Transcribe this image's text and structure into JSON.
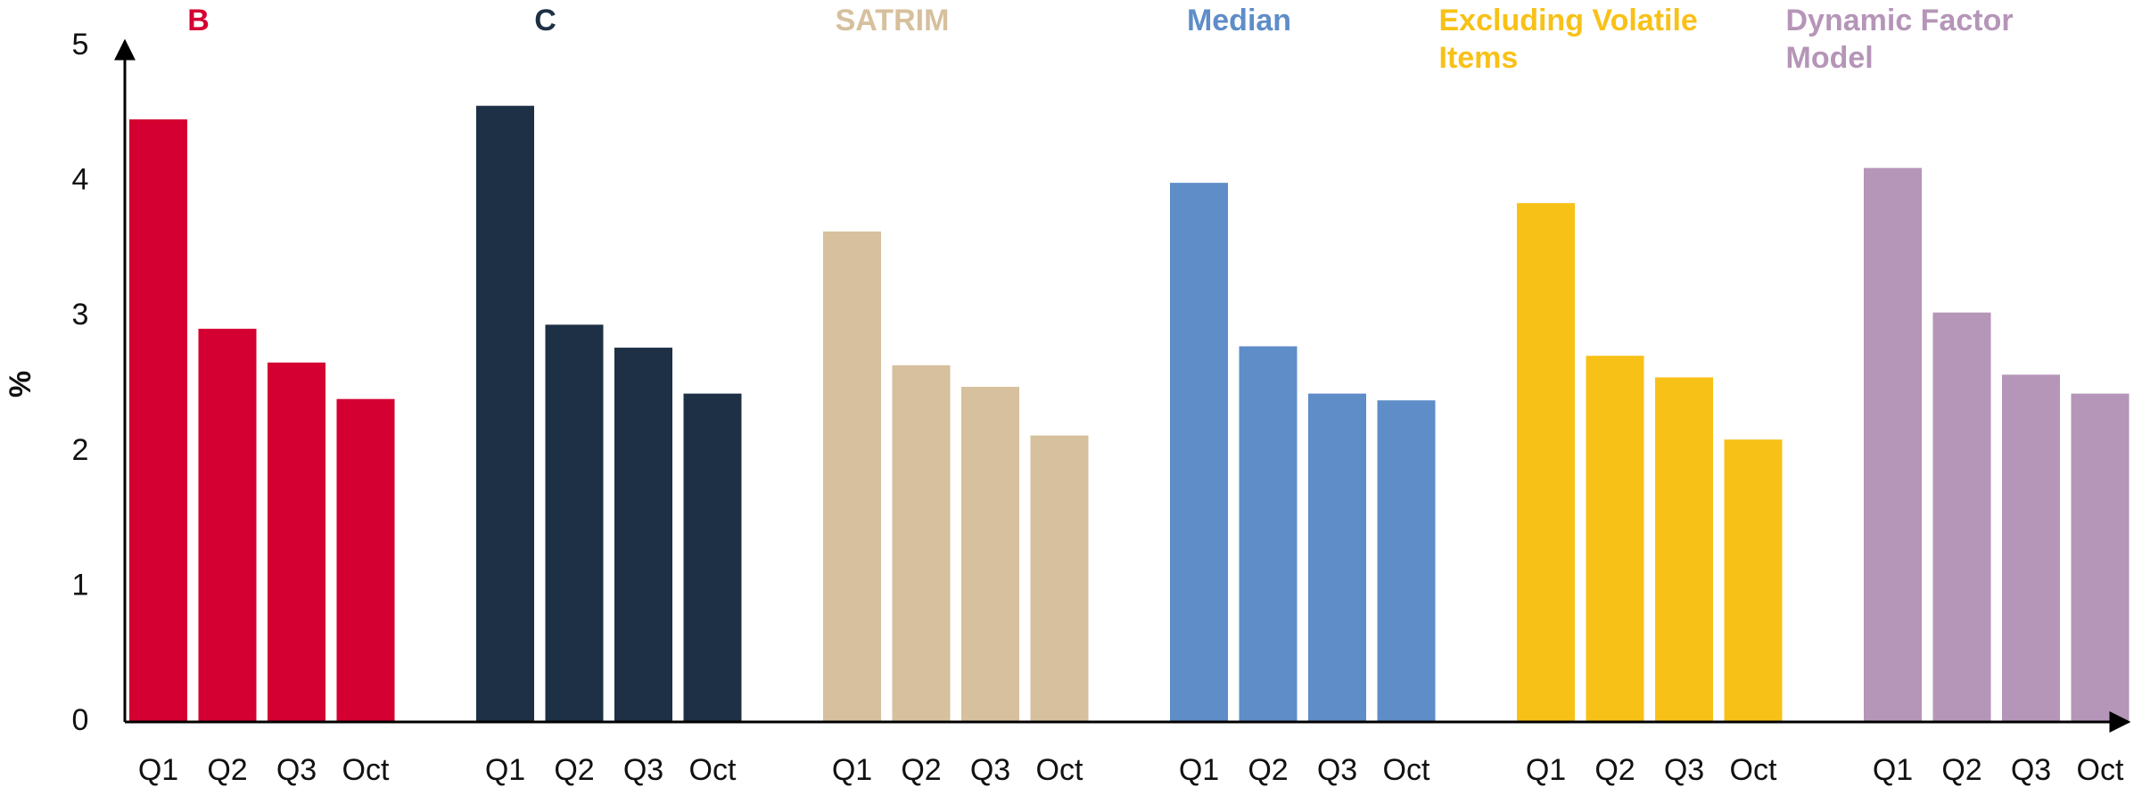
{
  "chart_data": {
    "type": "bar",
    "y_label": "%",
    "categories": [
      "Q1",
      "Q2",
      "Q3",
      "Oct"
    ],
    "series": [
      {
        "name": "B",
        "color": "#d50032",
        "values": [
          4.46,
          2.91,
          2.66,
          2.39
        ]
      },
      {
        "name": "C",
        "color": "#1d3045",
        "values": [
          4.56,
          2.94,
          2.77,
          2.43
        ]
      },
      {
        "name": "SATRIM",
        "color": "#d6c09d",
        "values": [
          3.63,
          2.64,
          2.48,
          2.12
        ]
      },
      {
        "name": "Median",
        "color": "#5e8dc8",
        "values": [
          3.99,
          2.78,
          2.43,
          2.38
        ]
      },
      {
        "name": "Excluding Volatile Items",
        "color": "#f8c117",
        "values": [
          3.84,
          2.71,
          2.55,
          2.09
        ]
      },
      {
        "name": "Dynamic Factor Model",
        "color": "#b595b8",
        "values": [
          4.1,
          3.03,
          2.57,
          2.43
        ]
      }
    ],
    "ylim": [
      0,
      5
    ],
    "yticks": [
      0,
      1,
      2,
      3,
      4,
      5
    ],
    "grid": false
  }
}
